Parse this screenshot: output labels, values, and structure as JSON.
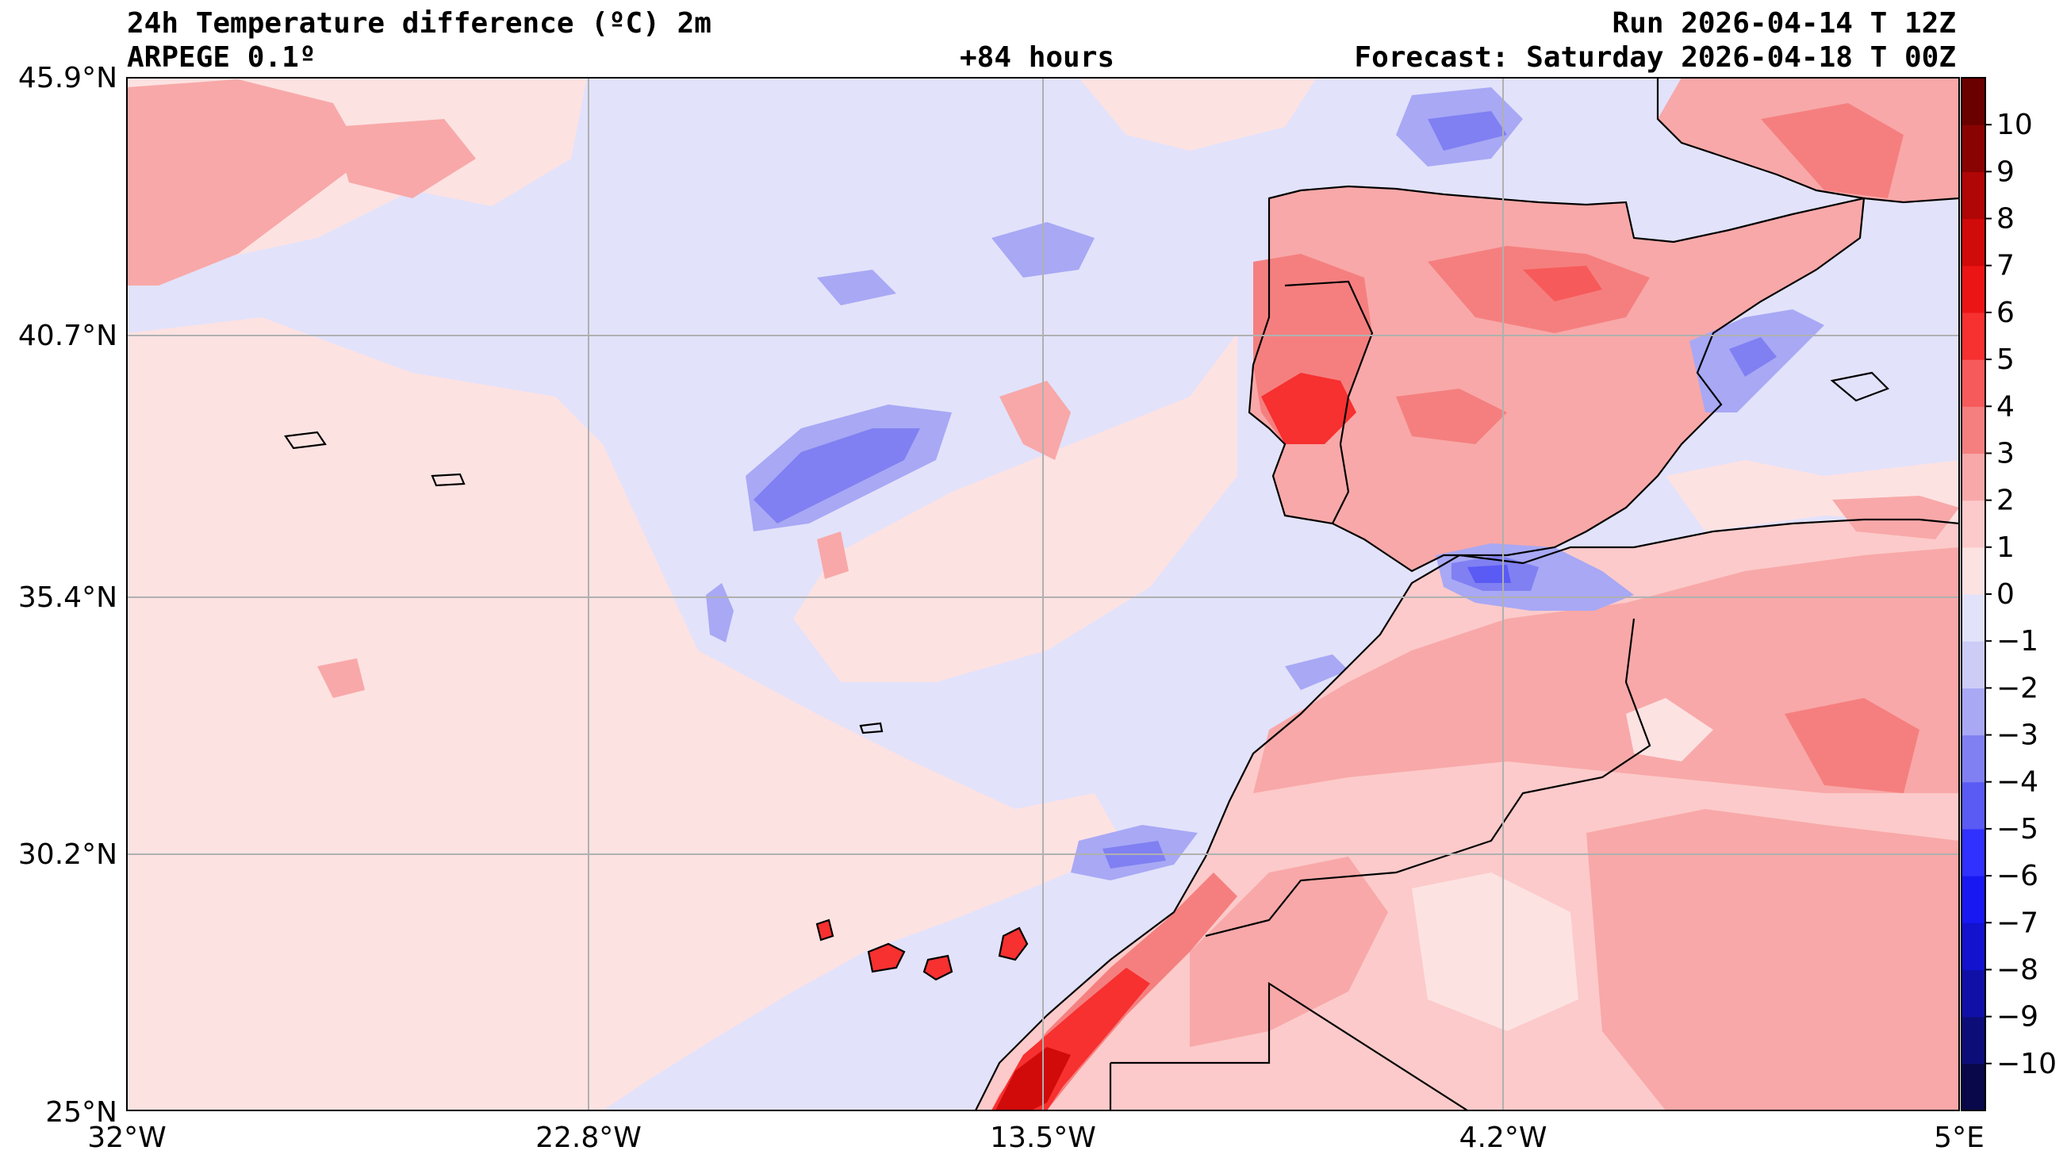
{
  "header": {
    "title": "24h Temperature difference (ºC) 2m",
    "model": "ARPEGE 0.1º",
    "lead": "+84 hours",
    "run": "Run 2026-04-14 T 12Z",
    "forecast": "Forecast: Saturday 2026-04-18 T 00Z"
  },
  "axes": {
    "lat_labels": [
      "45.9°N",
      "40.7°N",
      "35.4°N",
      "30.2°N",
      "25°N"
    ],
    "lon_labels": [
      "32°W",
      "22.8°W",
      "13.5°W",
      "4.2°W",
      "5°E"
    ],
    "lat_range": [
      25,
      45.9
    ],
    "lon_range": [
      -32,
      5
    ]
  },
  "colorbar": {
    "ticks": [
      "10",
      "9",
      "8",
      "7",
      "6",
      "5",
      "4",
      "3",
      "2",
      "1",
      "0",
      "−1",
      "−2",
      "−3",
      "−4",
      "−5",
      "−6",
      "−7",
      "−8",
      "−9",
      "−10"
    ],
    "range": [
      -11,
      11
    ],
    "colors": [
      "#08084a",
      "#0d0d7a",
      "#1010a8",
      "#1212cf",
      "#1818f2",
      "#3030ff",
      "#5a5af5",
      "#8080f2",
      "#a8a8f5",
      "#ccccf7",
      "#e2e2fb",
      "#fde2e2",
      "#fccaca",
      "#f8a8a8",
      "#f57f7f",
      "#f75a5a",
      "#f73030",
      "#ec1414",
      "#d10a0a",
      "#b00606",
      "#8a0303",
      "#6b0000"
    ]
  },
  "palette": {
    "sea_base": "#e2e2fb",
    "land_base": "#fccaca",
    "coast": "#000000",
    "grid": "#b0b0b0"
  }
}
